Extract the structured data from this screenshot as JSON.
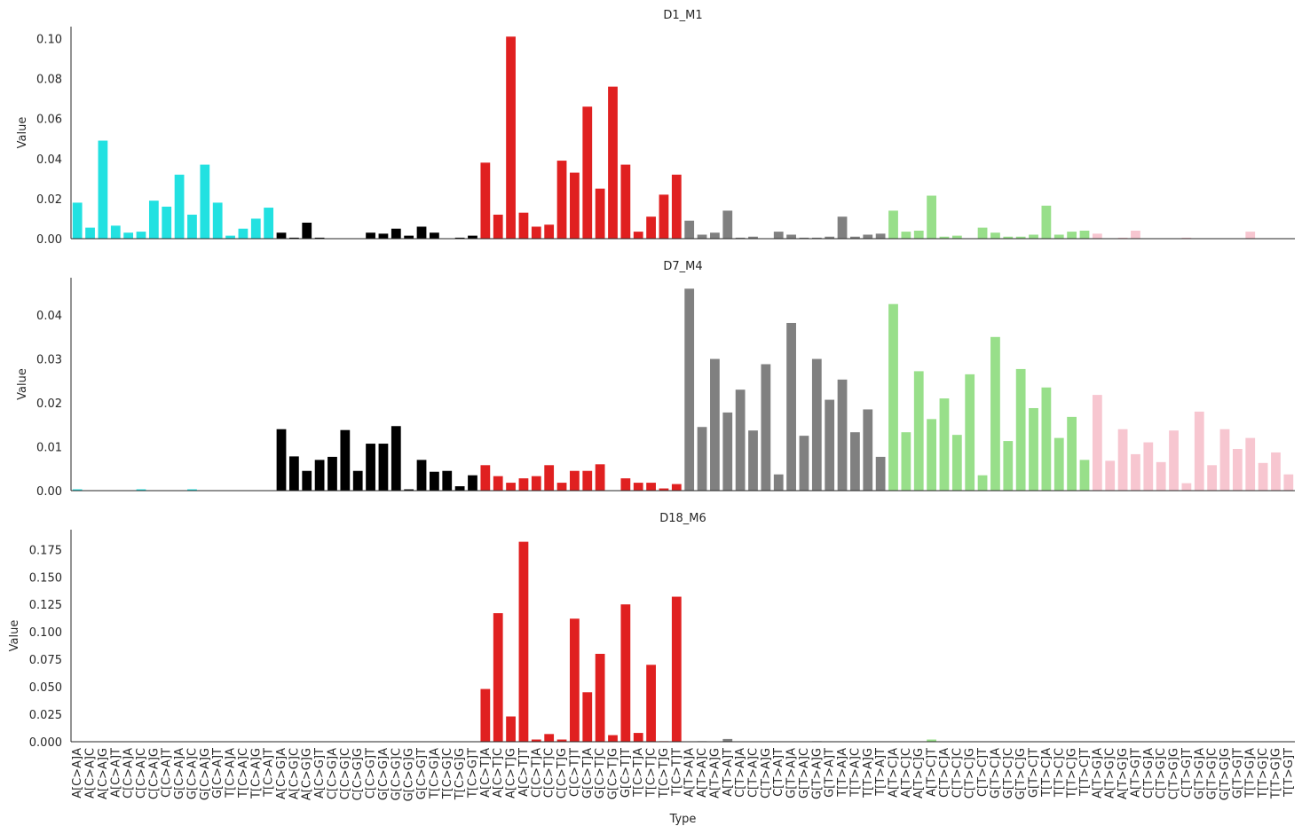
{
  "chart_data": {
    "type": "bar",
    "xlabel": "Type",
    "ylabel": "Value",
    "grid": false,
    "legend": "none",
    "categories": [
      "A[C>A]A",
      "A[C>A]C",
      "A[C>A]G",
      "A[C>A]T",
      "C[C>A]A",
      "C[C>A]C",
      "C[C>A]G",
      "C[C>A]T",
      "G[C>A]A",
      "G[C>A]C",
      "G[C>A]G",
      "G[C>A]T",
      "T[C>A]A",
      "T[C>A]C",
      "T[C>A]G",
      "T[C>A]T",
      "A[C>G]A",
      "A[C>G]C",
      "A[C>G]G",
      "A[C>G]T",
      "C[C>G]A",
      "C[C>G]C",
      "C[C>G]G",
      "C[C>G]T",
      "G[C>G]A",
      "G[C>G]C",
      "G[C>G]G",
      "G[C>G]T",
      "T[C>G]A",
      "T[C>G]C",
      "T[C>G]G",
      "T[C>G]T",
      "A[C>T]A",
      "A[C>T]C",
      "A[C>T]G",
      "A[C>T]T",
      "C[C>T]A",
      "C[C>T]C",
      "C[C>T]G",
      "C[C>T]T",
      "G[C>T]A",
      "G[C>T]C",
      "G[C>T]G",
      "G[C>T]T",
      "T[C>T]A",
      "T[C>T]C",
      "T[C>T]G",
      "T[C>T]T",
      "A[T>A]A",
      "A[T>A]C",
      "A[T>A]G",
      "A[T>A]T",
      "C[T>A]A",
      "C[T>A]C",
      "C[T>A]G",
      "C[T>A]T",
      "G[T>A]A",
      "G[T>A]C",
      "G[T>A]G",
      "G[T>A]T",
      "T[T>A]A",
      "T[T>A]C",
      "T[T>A]G",
      "T[T>A]T",
      "A[T>C]A",
      "A[T>C]C",
      "A[T>C]G",
      "A[T>C]T",
      "C[T>C]A",
      "C[T>C]C",
      "C[T>C]G",
      "C[T>C]T",
      "G[T>C]A",
      "G[T>C]C",
      "G[T>C]G",
      "G[T>C]T",
      "T[T>C]A",
      "T[T>C]C",
      "T[T>C]G",
      "T[T>C]T",
      "A[T>G]A",
      "A[T>G]C",
      "A[T>G]G",
      "A[T>G]T",
      "C[T>G]A",
      "C[T>G]C",
      "C[T>G]G",
      "C[T>G]T",
      "G[T>G]A",
      "G[T>G]C",
      "G[T>G]G",
      "G[T>G]T",
      "T[T>G]A",
      "T[T>G]C",
      "T[T>G]G",
      "T[T>G]T"
    ],
    "group_colors": [
      "#22e1e1",
      "#000000",
      "#e02020",
      "#808080",
      "#98df8a",
      "#f7c6d0"
    ],
    "panels": [
      {
        "title": "D1_M1",
        "ylim": [
          0,
          0.106
        ],
        "yticks": [
          0.0,
          0.02,
          0.04,
          0.06,
          0.08,
          0.1
        ],
        "tick_decimals": 2,
        "values": [
          0.018,
          0.0055,
          0.049,
          0.0065,
          0.003,
          0.0035,
          0.019,
          0.016,
          0.032,
          0.012,
          0.037,
          0.018,
          0.0015,
          0.005,
          0.01,
          0.0155,
          0.003,
          0.0005,
          0.008,
          0.0005,
          0,
          0,
          0,
          0.003,
          0.0025,
          0.005,
          0.0015,
          0.006,
          0.003,
          0,
          0.0005,
          0.0015,
          0.038,
          0.012,
          0.101,
          0.013,
          0.006,
          0.007,
          0.039,
          0.033,
          0.066,
          0.025,
          0.076,
          0.037,
          0.0035,
          0.011,
          0.022,
          0.032,
          0.009,
          0.002,
          0.003,
          0.014,
          0.0005,
          0.001,
          0,
          0.0035,
          0.002,
          0.0005,
          0.0005,
          0.001,
          0.011,
          0.001,
          0.002,
          0.0025,
          0.014,
          0.0035,
          0.004,
          0.0215,
          0.001,
          0.0015,
          0,
          0.0055,
          0.003,
          0.001,
          0.001,
          0.002,
          0.0165,
          0.002,
          0.0035,
          0.004,
          0.0025,
          0,
          0.0005,
          0.004,
          0,
          0,
          0,
          0.0005,
          0,
          0,
          0,
          0,
          0.0035,
          0,
          0,
          0
        ]
      },
      {
        "title": "D7_M4",
        "ylim": [
          0,
          0.0485
        ],
        "yticks": [
          0.0,
          0.01,
          0.02,
          0.03,
          0.04
        ],
        "tick_decimals": 2,
        "values": [
          0.0003,
          0.0001,
          0,
          0.0001,
          0.0001,
          0.0003,
          0,
          0.0001,
          0.0001,
          0.0003,
          0,
          0.0001,
          0,
          0,
          0,
          0,
          0.014,
          0.0078,
          0.0045,
          0.007,
          0.0077,
          0.0138,
          0.0045,
          0.0107,
          0.0107,
          0.0147,
          0.0003,
          0.007,
          0.0043,
          0.0045,
          0.001,
          0.0035,
          0.0058,
          0.0033,
          0.0018,
          0.0028,
          0.0033,
          0.0058,
          0.0018,
          0.0045,
          0.0045,
          0.006,
          0,
          0.0028,
          0.0018,
          0.0018,
          0.0005,
          0.0015,
          0.046,
          0.0145,
          0.03,
          0.0178,
          0.023,
          0.0137,
          0.0288,
          0.0037,
          0.0382,
          0.0125,
          0.03,
          0.0207,
          0.0253,
          0.0133,
          0.0185,
          0.0077,
          0.0425,
          0.0133,
          0.0272,
          0.0163,
          0.021,
          0.0127,
          0.0265,
          0.0035,
          0.035,
          0.0113,
          0.0277,
          0.0188,
          0.0235,
          0.012,
          0.0168,
          0.007,
          0.0218,
          0.0068,
          0.014,
          0.0083,
          0.011,
          0.0065,
          0.0137,
          0.0017,
          0.018,
          0.0058,
          0.014,
          0.0095,
          0.012,
          0.0063,
          0.0087,
          0.0037
        ]
      },
      {
        "title": "D18_M6",
        "ylim": [
          0,
          0.193
        ],
        "yticks": [
          0.0,
          0.025,
          0.05,
          0.075,
          0.1,
          0.125,
          0.15,
          0.175
        ],
        "tick_decimals": 3,
        "values": [
          0,
          0,
          0,
          0,
          0,
          0,
          0,
          0,
          0,
          0,
          0,
          0,
          0,
          0,
          0,
          0,
          0,
          0,
          0,
          0,
          0,
          0,
          0,
          0,
          0,
          0,
          0,
          0,
          0,
          0,
          0,
          0,
          0.048,
          0.117,
          0.023,
          0.182,
          0.002,
          0.007,
          0.002,
          0.112,
          0.045,
          0.08,
          0.006,
          0.125,
          0.008,
          0.07,
          0.0005,
          0.132,
          0,
          0.0005,
          0,
          0.0025,
          0,
          0,
          0,
          0,
          0,
          0,
          0.0005,
          0,
          0,
          0,
          0,
          0,
          0,
          0,
          0,
          0.002,
          0,
          0,
          0,
          0,
          0,
          0,
          0,
          0,
          0,
          0,
          0,
          0,
          0,
          0,
          0,
          0.0003,
          0,
          0,
          0,
          0,
          0,
          0,
          0,
          0,
          0,
          0,
          0,
          0
        ]
      }
    ]
  }
}
